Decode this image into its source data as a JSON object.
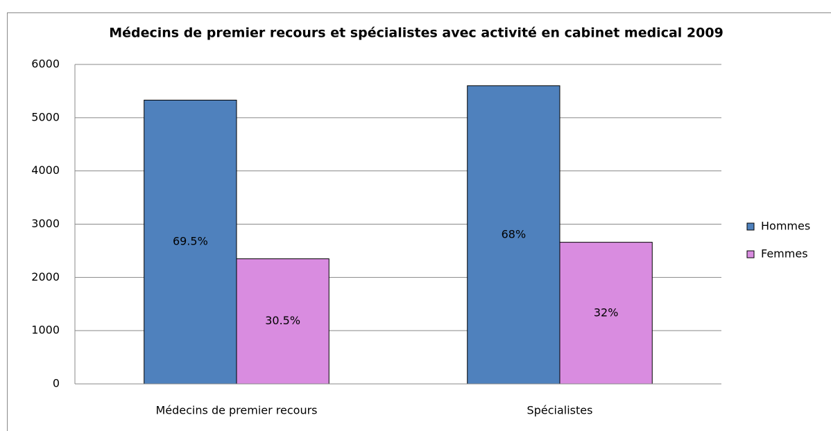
{
  "chart_data": {
    "type": "bar",
    "title": "Médecins de premier recours et spécialistes avec activité en cabinet medical 2009",
    "categories": [
      "Médecins de premier recours",
      "Spécialistes"
    ],
    "series": [
      {
        "name": "Hommes",
        "color": "#4f81bd",
        "values": [
          5330,
          5600
        ],
        "share_labels": [
          "69.5%",
          "68%"
        ]
      },
      {
        "name": "Femmes",
        "color": "#d98ce0",
        "values": [
          2350,
          2660
        ],
        "share_labels": [
          "30.5%",
          "32%"
        ]
      }
    ],
    "ylim": [
      0,
      6000
    ],
    "yticks": [
      0,
      1000,
      2000,
      3000,
      4000,
      5000,
      6000
    ],
    "grid": true,
    "legend": "right"
  }
}
